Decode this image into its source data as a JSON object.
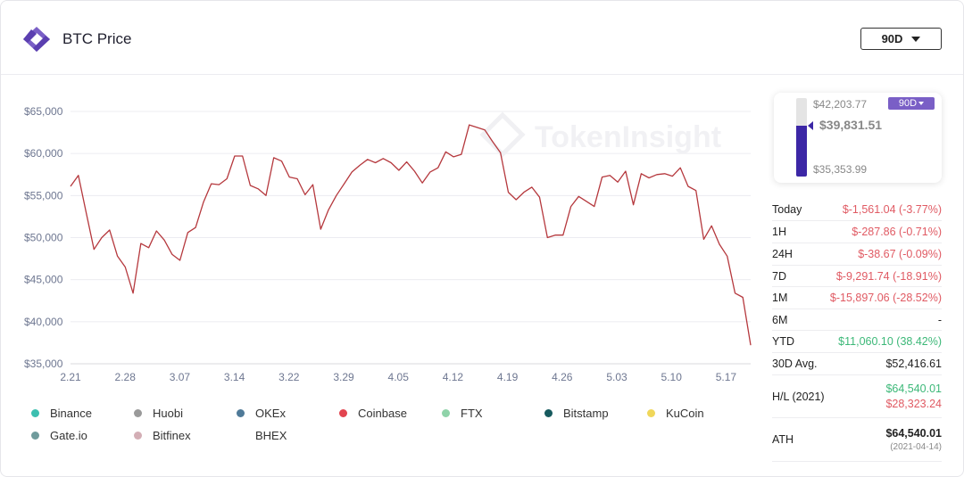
{
  "header": {
    "title": "BTC Price",
    "range": "90D"
  },
  "watermark": "TokenInsight",
  "chart_data": {
    "type": "line",
    "title": "",
    "xlabel": "",
    "ylabel": "",
    "ylim": [
      35000,
      65000
    ],
    "yticks": [
      35000,
      40000,
      45000,
      50000,
      55000,
      60000,
      65000
    ],
    "ytick_labels": [
      "$35,000",
      "$40,000",
      "$45,000",
      "$50,000",
      "$55,000",
      "$60,000",
      "$65,000"
    ],
    "xticks": [
      "2.21",
      "2.28",
      "3.07",
      "3.14",
      "3.22",
      "3.29",
      "4.05",
      "4.12",
      "4.19",
      "4.26",
      "5.03",
      "5.10",
      "5.17"
    ],
    "grid": true,
    "line_color": "#b5383d",
    "series": [
      {
        "values": [
          56100,
          57400,
          53000,
          48600,
          50000,
          50900,
          47800,
          46500,
          43400,
          49300,
          48800,
          50800,
          49700,
          48000,
          47300,
          50600,
          51200,
          54200,
          56400,
          56300,
          57000,
          59700,
          59700,
          56200,
          55800,
          55000,
          59500,
          59100,
          57200,
          57000,
          55100,
          56300,
          51000,
          53300,
          55000,
          56400,
          57800,
          58600,
          59300,
          58900,
          59400,
          58900,
          58000,
          59000,
          57900,
          56500,
          57800,
          58300,
          60200,
          59600,
          59900,
          63400,
          63100,
          62800,
          61400,
          60100,
          55400,
          54500,
          55400,
          56000,
          54800,
          50000,
          50300,
          50300,
          53700,
          54900,
          54300,
          53700,
          57200,
          57400,
          56600,
          57900,
          53900,
          57600,
          57100,
          57500,
          57600,
          57300,
          58300,
          56100,
          55600,
          49800,
          51400,
          49200,
          47800,
          43400,
          42900,
          37200
        ]
      }
    ]
  },
  "legend": [
    {
      "name": "Binance",
      "color": "#3cbfb0"
    },
    {
      "name": "Huobi",
      "color": "#9a9a9a"
    },
    {
      "name": "OKEx",
      "color": "#4f7a98"
    },
    {
      "name": "Coinbase",
      "color": "#e2444f"
    },
    {
      "name": "FTX",
      "color": "#8fd3a9"
    },
    {
      "name": "Bitstamp",
      "color": "#175a5e"
    },
    {
      "name": "KuCoin",
      "color": "#f0d75a"
    },
    {
      "name": "Gate.io",
      "color": "#6f9b9c"
    },
    {
      "name": "Bitfinex",
      "color": "#d3aeb5"
    },
    {
      "name": "BHEX",
      "color": "#ffffff"
    }
  ],
  "price_panel": {
    "high": "$42,203.77",
    "current": "$39,831.51",
    "low": "$35,353.99",
    "badge": "90D",
    "level": 0.65
  },
  "stats": {
    "today_label": "Today",
    "today_value": "$-1,561.04 (-3.77%)",
    "h1_label": "1H",
    "h1_value": "$-287.86 (-0.71%)",
    "h24_label": "24H",
    "h24_value": "$-38.67 (-0.09%)",
    "d7_label": "7D",
    "d7_value": "$-9,291.74 (-18.91%)",
    "m1_label": "1M",
    "m1_value": "$-15,897.06 (-28.52%)",
    "m6_label": "6M",
    "m6_value": "-",
    "ytd_label": "YTD",
    "ytd_value": "$11,060.10 (38.42%)",
    "avg30_label": "30D Avg.",
    "avg30_value": "$52,416.61",
    "hl_label": "H/L (2021)",
    "hl_high": "$64,540.01",
    "hl_low": "$28,323.24",
    "ath_label": "ATH",
    "ath_value": "$64,540.01",
    "ath_date": "(2021-04-14)"
  }
}
